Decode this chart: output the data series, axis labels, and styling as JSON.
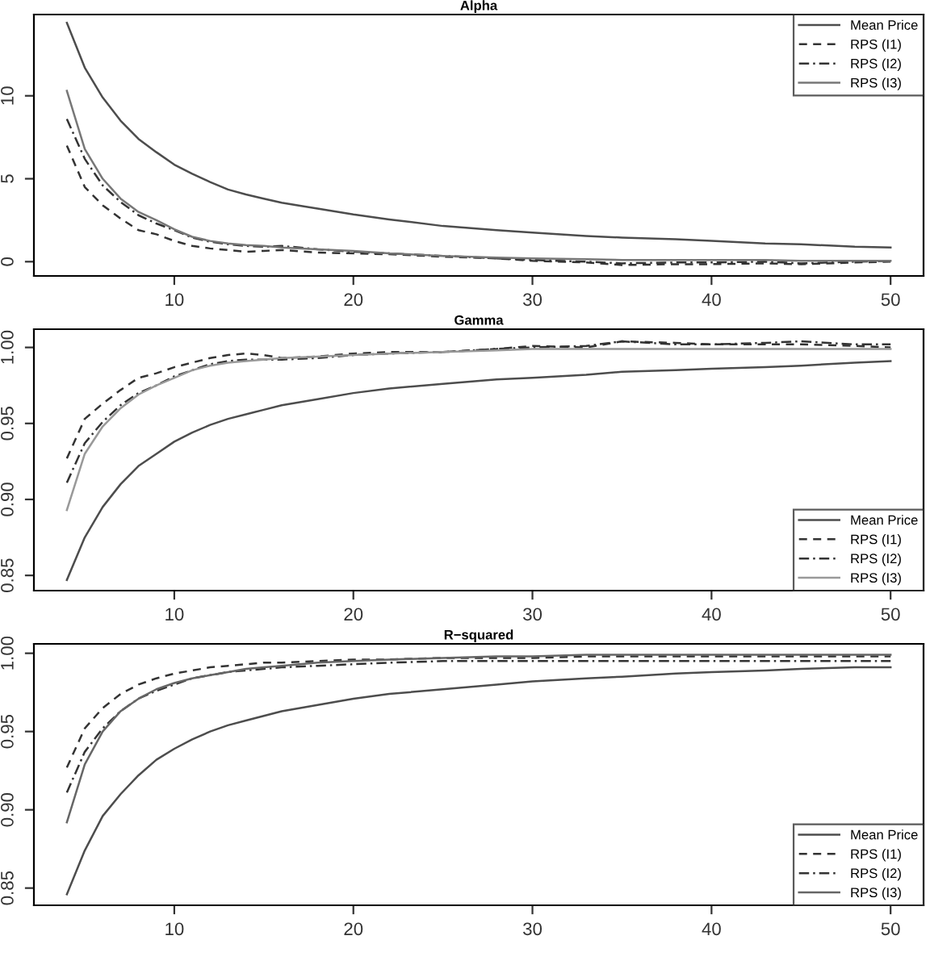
{
  "chart_data": [
    {
      "type": "line",
      "title": "Alpha",
      "legend": "top right",
      "grid": false,
      "x": [
        4,
        5,
        6,
        7,
        8,
        9,
        10,
        11,
        12,
        13,
        14,
        15,
        16,
        18,
        20,
        22,
        25,
        28,
        30,
        33,
        35,
        38,
        40,
        43,
        45,
        48,
        50
      ],
      "xlim": [
        2.16,
        51.84
      ],
      "xticks": [
        10,
        20,
        30,
        40,
        50
      ],
      "ylim": [
        -0.86,
        14.9
      ],
      "yticks": [
        0,
        5,
        10
      ],
      "series": [
        {
          "name": "Mean Price",
          "color": "#4d4d4d",
          "line_style": "solid",
          "values": [
            14.4,
            11.7,
            9.9,
            8.5,
            7.4,
            6.6,
            5.85,
            5.3,
            4.8,
            4.35,
            4.05,
            3.8,
            3.55,
            3.2,
            2.85,
            2.55,
            2.15,
            1.9,
            1.75,
            1.55,
            1.45,
            1.35,
            1.25,
            1.1,
            1.05,
            0.9,
            0.85
          ]
        },
        {
          "name": "RPS (I1)",
          "color": "#333333",
          "line_style": "dashed",
          "values": [
            7.0,
            4.5,
            3.4,
            2.6,
            1.9,
            1.65,
            1.25,
            0.95,
            0.8,
            0.7,
            0.6,
            0.65,
            0.7,
            0.55,
            0.5,
            0.45,
            0.3,
            0.2,
            0.05,
            -0.05,
            -0.2,
            -0.15,
            -0.15,
            -0.1,
            -0.15,
            -0.05,
            0.0
          ]
        },
        {
          "name": "RPS (I2)",
          "color": "#333333",
          "line_style": "dashdot",
          "values": [
            8.6,
            6.2,
            4.6,
            3.6,
            2.8,
            2.3,
            1.9,
            1.45,
            1.2,
            1.05,
            0.95,
            0.9,
            0.95,
            0.75,
            0.6,
            0.5,
            0.35,
            0.2,
            0.1,
            0.0,
            -0.1,
            -0.05,
            -0.05,
            0.0,
            -0.1,
            0.0,
            0.05
          ]
        },
        {
          "name": "RPS (I3)",
          "color": "#777777",
          "line_style": "solid",
          "values": [
            10.3,
            6.8,
            5.0,
            3.8,
            3.0,
            2.5,
            1.95,
            1.5,
            1.25,
            1.1,
            1.0,
            0.95,
            0.85,
            0.75,
            0.65,
            0.5,
            0.35,
            0.25,
            0.2,
            0.15,
            0.1,
            0.1,
            0.1,
            0.1,
            0.05,
            0.05,
            0.05
          ]
        }
      ]
    },
    {
      "type": "line",
      "title": "Gamma",
      "legend": "bottom right",
      "grid": false,
      "x": [
        4,
        5,
        6,
        7,
        8,
        9,
        10,
        11,
        12,
        13,
        14,
        15,
        16,
        18,
        20,
        22,
        25,
        28,
        30,
        33,
        35,
        38,
        40,
        43,
        45,
        48,
        50
      ],
      "xlim": [
        2.16,
        51.84
      ],
      "xticks": [
        10,
        20,
        30,
        40,
        50
      ],
      "ylim": [
        0.84,
        1.012
      ],
      "yticks": [
        {
          "value": 0.85,
          "label": "0.85"
        },
        {
          "value": 0.9,
          "label": "0.90"
        },
        {
          "value": 0.95,
          "label": "0.95"
        },
        {
          "value": 1.0,
          "label": "1.00"
        }
      ],
      "series": [
        {
          "name": "Mean Price",
          "color": "#4d4d4d",
          "line_style": "solid",
          "values": [
            0.847,
            0.875,
            0.895,
            0.91,
            0.922,
            0.93,
            0.938,
            0.944,
            0.949,
            0.953,
            0.956,
            0.959,
            0.962,
            0.966,
            0.97,
            0.973,
            0.976,
            0.979,
            0.98,
            0.982,
            0.984,
            0.985,
            0.986,
            0.987,
            0.988,
            0.99,
            0.991
          ]
        },
        {
          "name": "RPS (I1)",
          "color": "#333333",
          "line_style": "dashed",
          "values": [
            0.927,
            0.953,
            0.963,
            0.972,
            0.98,
            0.983,
            0.987,
            0.99,
            0.993,
            0.995,
            0.996,
            0.995,
            0.993,
            0.994,
            0.996,
            0.997,
            0.997,
            0.999,
            1.001,
            1.0,
            1.004,
            1.003,
            1.002,
            1.002,
            1.002,
            1.001,
            1.0
          ]
        },
        {
          "name": "RPS (I2)",
          "color": "#333333",
          "line_style": "dashdot",
          "values": [
            0.911,
            0.937,
            0.951,
            0.962,
            0.97,
            0.975,
            0.981,
            0.985,
            0.989,
            0.991,
            0.992,
            0.992,
            0.992,
            0.993,
            0.995,
            0.996,
            0.997,
            0.999,
            1.0,
            1.001,
            1.004,
            1.002,
            1.002,
            1.003,
            1.004,
            1.002,
            1.002
          ]
        },
        {
          "name": "RPS (I3)",
          "color": "#999999",
          "line_style": "solid",
          "values": [
            0.893,
            0.93,
            0.948,
            0.96,
            0.969,
            0.975,
            0.98,
            0.985,
            0.988,
            0.99,
            0.991,
            0.992,
            0.993,
            0.994,
            0.995,
            0.996,
            0.997,
            0.998,
            0.999,
            0.999,
            0.999,
            0.999,
            0.999,
            0.999,
            0.999,
            0.999,
            0.999
          ]
        }
      ]
    },
    {
      "type": "line",
      "title": "R−squared",
      "legend": "bottom right",
      "grid": false,
      "x": [
        4,
        5,
        6,
        7,
        8,
        9,
        10,
        11,
        12,
        13,
        14,
        15,
        16,
        18,
        20,
        22,
        25,
        28,
        30,
        33,
        35,
        38,
        40,
        43,
        45,
        48,
        50
      ],
      "xlim": [
        2.16,
        51.84
      ],
      "xticks": [
        10,
        20,
        30,
        40,
        50
      ],
      "ylim": [
        0.839,
        1.006
      ],
      "yticks": [
        {
          "value": 0.85,
          "label": "0.85"
        },
        {
          "value": 0.9,
          "label": "0.90"
        },
        {
          "value": 0.95,
          "label": "0.95"
        },
        {
          "value": 1.0,
          "label": "1.00"
        }
      ],
      "series": [
        {
          "name": "Mean Price",
          "color": "#4d4d4d",
          "line_style": "solid",
          "values": [
            0.846,
            0.874,
            0.896,
            0.91,
            0.922,
            0.932,
            0.939,
            0.945,
            0.95,
            0.954,
            0.957,
            0.96,
            0.963,
            0.967,
            0.971,
            0.974,
            0.977,
            0.98,
            0.982,
            0.984,
            0.985,
            0.987,
            0.988,
            0.989,
            0.99,
            0.991,
            0.991
          ]
        },
        {
          "name": "RPS (I1)",
          "color": "#333333",
          "line_style": "dashed",
          "values": [
            0.927,
            0.952,
            0.965,
            0.974,
            0.98,
            0.984,
            0.987,
            0.989,
            0.991,
            0.992,
            0.993,
            0.994,
            0.994,
            0.995,
            0.996,
            0.996,
            0.997,
            0.997,
            0.997,
            0.998,
            0.998,
            0.998,
            0.998,
            0.998,
            0.998,
            0.998,
            0.998
          ]
        },
        {
          "name": "RPS (I2)",
          "color": "#333333",
          "line_style": "dashdot",
          "values": [
            0.911,
            0.937,
            0.952,
            0.963,
            0.971,
            0.976,
            0.98,
            0.984,
            0.986,
            0.988,
            0.989,
            0.99,
            0.991,
            0.992,
            0.993,
            0.994,
            0.995,
            0.995,
            0.995,
            0.995,
            0.995,
            0.995,
            0.995,
            0.995,
            0.995,
            0.995,
            0.995
          ]
        },
        {
          "name": "RPS (I3)",
          "color": "#666666",
          "line_style": "solid",
          "values": [
            0.892,
            0.929,
            0.95,
            0.963,
            0.971,
            0.977,
            0.981,
            0.984,
            0.986,
            0.988,
            0.99,
            0.991,
            0.992,
            0.994,
            0.995,
            0.996,
            0.997,
            0.998,
            0.998,
            0.999,
            0.999,
            0.999,
            0.999,
            0.999,
            0.999,
            0.999,
            0.999
          ]
        }
      ]
    }
  ]
}
